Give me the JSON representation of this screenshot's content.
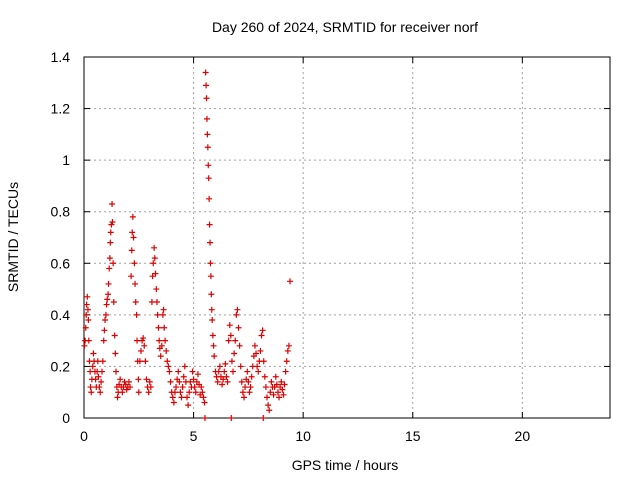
{
  "chart_data": {
    "type": "scatter",
    "title": "Day 260 of 2024, SRMTID for receiver norf",
    "xlabel": "GPS time / hours",
    "ylabel": "SRMTID / TECUs",
    "xlim": [
      0,
      24
    ],
    "ylim": [
      0,
      1.4
    ],
    "xticks": [
      0,
      5,
      10,
      15,
      20
    ],
    "xtick_labels": [
      "0",
      "5",
      "10",
      "15",
      "20"
    ],
    "yticks": [
      0,
      0.2,
      0.4,
      0.6,
      0.8,
      1,
      1.2,
      1.4
    ],
    "ytick_labels": [
      "0",
      "0.2",
      "0.4",
      "0.6",
      "0.8",
      "1",
      "1.2",
      "1.4"
    ],
    "grid": true,
    "marker": "+",
    "color": "#e00000",
    "series": [
      {
        "name": "SRMTID",
        "points": [
          [
            0.02,
            0.28
          ],
          [
            0.05,
            0.3
          ],
          [
            0.08,
            0.35
          ],
          [
            0.1,
            0.4
          ],
          [
            0.12,
            0.44
          ],
          [
            0.15,
            0.47
          ],
          [
            0.18,
            0.42
          ],
          [
            0.2,
            0.38
          ],
          [
            0.22,
            0.3
          ],
          [
            0.25,
            0.22
          ],
          [
            0.28,
            0.18
          ],
          [
            0.3,
            0.12
          ],
          [
            0.33,
            0.1
          ],
          [
            0.36,
            0.15
          ],
          [
            0.4,
            0.2
          ],
          [
            0.43,
            0.25
          ],
          [
            0.46,
            0.22
          ],
          [
            0.5,
            0.18
          ],
          [
            0.53,
            0.15
          ],
          [
            0.56,
            0.12
          ],
          [
            0.6,
            0.18
          ],
          [
            0.63,
            0.22
          ],
          [
            0.66,
            0.16
          ],
          [
            0.7,
            0.12
          ],
          [
            0.74,
            0.1
          ],
          [
            0.78,
            0.14
          ],
          [
            0.82,
            0.18
          ],
          [
            0.86,
            0.22
          ],
          [
            0.9,
            0.3
          ],
          [
            0.93,
            0.34
          ],
          [
            0.96,
            0.38
          ],
          [
            1.0,
            0.4
          ],
          [
            1.03,
            0.44
          ],
          [
            1.06,
            0.46
          ],
          [
            1.1,
            0.48
          ],
          [
            1.12,
            0.52
          ],
          [
            1.15,
            0.58
          ],
          [
            1.18,
            0.62
          ],
          [
            1.2,
            0.68
          ],
          [
            1.22,
            0.72
          ],
          [
            1.25,
            0.75
          ],
          [
            1.28,
            0.83
          ],
          [
            1.3,
            0.76
          ],
          [
            1.33,
            0.6
          ],
          [
            1.36,
            0.45
          ],
          [
            1.4,
            0.32
          ],
          [
            1.43,
            0.25
          ],
          [
            1.46,
            0.18
          ],
          [
            1.5,
            0.12
          ],
          [
            1.53,
            0.08
          ],
          [
            1.56,
            0.1
          ],
          [
            1.6,
            0.13
          ],
          [
            1.65,
            0.15
          ],
          [
            1.7,
            0.12
          ],
          [
            1.75,
            0.1
          ],
          [
            1.8,
            0.12
          ],
          [
            1.85,
            0.14
          ],
          [
            1.9,
            0.13
          ],
          [
            1.95,
            0.11
          ],
          [
            2.0,
            0.12
          ],
          [
            2.05,
            0.14
          ],
          [
            2.1,
            0.12
          ],
          [
            2.15,
            0.55
          ],
          [
            2.18,
            0.65
          ],
          [
            2.2,
            0.72
          ],
          [
            2.23,
            0.78
          ],
          [
            2.26,
            0.7
          ],
          [
            2.3,
            0.6
          ],
          [
            2.33,
            0.52
          ],
          [
            2.36,
            0.45
          ],
          [
            2.4,
            0.4
          ],
          [
            2.42,
            0.3
          ],
          [
            2.45,
            0.22
          ],
          [
            2.48,
            0.15
          ],
          [
            2.5,
            0.1
          ],
          [
            2.55,
            0.22
          ],
          [
            2.6,
            0.26
          ],
          [
            2.65,
            0.3
          ],
          [
            2.7,
            0.31
          ],
          [
            2.75,
            0.28
          ],
          [
            2.8,
            0.22
          ],
          [
            2.85,
            0.15
          ],
          [
            2.9,
            0.12
          ],
          [
            2.95,
            0.1
          ],
          [
            3.0,
            0.14
          ],
          [
            3.05,
            0.12
          ],
          [
            3.1,
            0.45
          ],
          [
            3.13,
            0.55
          ],
          [
            3.16,
            0.6
          ],
          [
            3.2,
            0.66
          ],
          [
            3.23,
            0.62
          ],
          [
            3.26,
            0.56
          ],
          [
            3.3,
            0.5
          ],
          [
            3.33,
            0.45
          ],
          [
            3.36,
            0.4
          ],
          [
            3.4,
            0.35
          ],
          [
            3.43,
            0.3
          ],
          [
            3.46,
            0.27
          ],
          [
            3.5,
            0.24
          ],
          [
            3.55,
            0.28
          ],
          [
            3.6,
            0.4
          ],
          [
            3.63,
            0.42
          ],
          [
            3.66,
            0.35
          ],
          [
            3.7,
            0.3
          ],
          [
            3.75,
            0.26
          ],
          [
            3.8,
            0.22
          ],
          [
            3.85,
            0.2
          ],
          [
            3.9,
            0.18
          ],
          [
            3.95,
            0.14
          ],
          [
            4.0,
            0.1
          ],
          [
            4.05,
            0.08
          ],
          [
            4.1,
            0.06
          ],
          [
            4.15,
            0.1
          ],
          [
            4.2,
            0.12
          ],
          [
            4.25,
            0.15
          ],
          [
            4.3,
            0.18
          ],
          [
            4.35,
            0.14
          ],
          [
            4.4,
            0.1
          ],
          [
            4.45,
            0.08
          ],
          [
            4.5,
            0.12
          ],
          [
            4.55,
            0.16
          ],
          [
            4.6,
            0.2
          ],
          [
            4.65,
            0.14
          ],
          [
            4.7,
            0.08
          ],
          [
            4.75,
            0.05
          ],
          [
            4.8,
            0.1
          ],
          [
            4.85,
            0.14
          ],
          [
            4.9,
            0.12
          ],
          [
            4.95,
            0.18
          ],
          [
            5.0,
            0.15
          ],
          [
            5.05,
            0.12
          ],
          [
            5.1,
            0.1
          ],
          [
            5.15,
            0.14
          ],
          [
            5.2,
            0.17
          ],
          [
            5.25,
            0.13
          ],
          [
            5.3,
            0.09
          ],
          [
            5.35,
            0.12
          ],
          [
            5.4,
            0.1
          ],
          [
            5.45,
            0.08
          ],
          [
            5.5,
            0.06
          ],
          [
            5.52,
            0.0
          ],
          [
            5.55,
            1.34
          ],
          [
            5.57,
            1.29
          ],
          [
            5.59,
            1.24
          ],
          [
            5.61,
            1.16
          ],
          [
            5.63,
            1.1
          ],
          [
            5.65,
            1.05
          ],
          [
            5.67,
            0.98
          ],
          [
            5.69,
            0.93
          ],
          [
            5.71,
            0.85
          ],
          [
            5.73,
            0.75
          ],
          [
            5.75,
            0.68
          ],
          [
            5.77,
            0.6
          ],
          [
            5.79,
            0.55
          ],
          [
            5.81,
            0.48
          ],
          [
            5.83,
            0.42
          ],
          [
            5.85,
            0.38
          ],
          [
            5.88,
            0.32
          ],
          [
            5.91,
            0.28
          ],
          [
            5.94,
            0.24
          ],
          [
            6.0,
            0.18
          ],
          [
            6.05,
            0.16
          ],
          [
            6.1,
            0.14
          ],
          [
            6.15,
            0.18
          ],
          [
            6.2,
            0.2
          ],
          [
            6.25,
            0.16
          ],
          [
            6.3,
            0.13
          ],
          [
            6.35,
            0.15
          ],
          [
            6.4,
            0.18
          ],
          [
            6.45,
            0.21
          ],
          [
            6.5,
            0.16
          ],
          [
            6.55,
            0.14
          ],
          [
            6.6,
            0.3
          ],
          [
            6.65,
            0.36
          ],
          [
            6.7,
            0.32
          ],
          [
            6.72,
            0.0
          ],
          [
            6.75,
            0.22
          ],
          [
            6.8,
            0.18
          ],
          [
            6.85,
            0.25
          ],
          [
            6.9,
            0.3
          ],
          [
            6.95,
            0.4
          ],
          [
            7.0,
            0.42
          ],
          [
            7.05,
            0.35
          ],
          [
            7.1,
            0.28
          ],
          [
            7.15,
            0.2
          ],
          [
            7.2,
            0.14
          ],
          [
            7.25,
            0.1
          ],
          [
            7.3,
            0.08
          ],
          [
            7.35,
            0.12
          ],
          [
            7.4,
            0.15
          ],
          [
            7.45,
            0.18
          ],
          [
            7.5,
            0.14
          ],
          [
            7.55,
            0.1
          ],
          [
            7.6,
            0.12
          ],
          [
            7.65,
            0.16
          ],
          [
            7.7,
            0.2
          ],
          [
            7.75,
            0.24
          ],
          [
            7.8,
            0.28
          ],
          [
            7.85,
            0.25
          ],
          [
            7.9,
            0.2
          ],
          [
            7.95,
            0.18
          ],
          [
            8.0,
            0.22
          ],
          [
            8.05,
            0.26
          ],
          [
            8.1,
            0.32
          ],
          [
            8.15,
            0.34
          ],
          [
            8.18,
            0.0
          ],
          [
            8.2,
            0.22
          ],
          [
            8.25,
            0.16
          ],
          [
            8.3,
            0.12
          ],
          [
            8.35,
            0.08
          ],
          [
            8.4,
            0.05
          ],
          [
            8.45,
            0.03
          ],
          [
            8.5,
            0.1
          ],
          [
            8.55,
            0.14
          ],
          [
            8.6,
            0.12
          ],
          [
            8.65,
            0.09
          ],
          [
            8.7,
            0.12
          ],
          [
            8.75,
            0.16
          ],
          [
            8.8,
            0.13
          ],
          [
            8.85,
            0.1
          ],
          [
            8.9,
            0.08
          ],
          [
            8.95,
            0.12
          ],
          [
            9.0,
            0.14
          ],
          [
            9.05,
            0.11
          ],
          [
            9.1,
            0.09
          ],
          [
            9.15,
            0.13
          ],
          [
            9.2,
            0.18
          ],
          [
            9.25,
            0.22
          ],
          [
            9.3,
            0.26
          ],
          [
            9.35,
            0.28
          ],
          [
            9.4,
            0.53
          ]
        ]
      }
    ]
  }
}
